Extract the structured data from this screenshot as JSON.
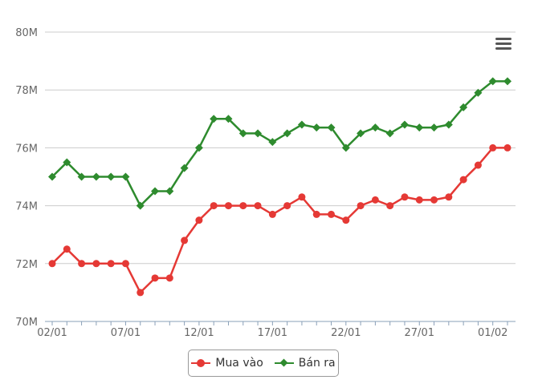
{
  "chart_data": {
    "type": "line",
    "x": [
      "02/01",
      "03/01",
      "04/01",
      "05/01",
      "06/01",
      "07/01",
      "08/01",
      "09/01",
      "10/01",
      "11/01",
      "12/01",
      "13/01",
      "14/01",
      "15/01",
      "16/01",
      "17/01",
      "18/01",
      "19/01",
      "20/01",
      "21/01",
      "22/01",
      "23/01",
      "24/01",
      "25/01",
      "26/01",
      "27/01",
      "28/01",
      "29/01",
      "30/01",
      "31/01",
      "01/02",
      "02/02"
    ],
    "x_tick_labels": [
      "02/01",
      "07/01",
      "12/01",
      "17/01",
      "22/01",
      "27/01",
      "01/02"
    ],
    "y_tick_labels": [
      "70M",
      "72M",
      "74M",
      "76M",
      "78M",
      "80M"
    ],
    "ylim": [
      70,
      80
    ],
    "y_unit": "M",
    "grid": true,
    "legend_position": "bottom-center",
    "series": [
      {
        "name": "Mua vào",
        "color": "#e53935",
        "marker": "circle",
        "values": [
          72.0,
          72.5,
          72.0,
          72.0,
          72.0,
          72.0,
          71.0,
          71.5,
          71.5,
          72.8,
          73.5,
          74.0,
          74.0,
          74.0,
          74.0,
          73.7,
          74.0,
          74.3,
          73.7,
          73.7,
          73.5,
          74.0,
          74.2,
          74.0,
          74.3,
          74.2,
          74.2,
          74.3,
          74.9,
          75.4,
          76.0,
          76.0
        ]
      },
      {
        "name": "Bán ra",
        "color": "#2e8b2e",
        "marker": "diamond",
        "values": [
          75.0,
          75.5,
          75.0,
          75.0,
          75.0,
          75.0,
          74.0,
          74.5,
          74.5,
          75.3,
          76.0,
          77.0,
          77.0,
          76.5,
          76.5,
          76.2,
          76.5,
          76.8,
          76.7,
          76.7,
          76.0,
          76.5,
          76.7,
          76.5,
          76.8,
          76.7,
          76.7,
          76.8,
          77.4,
          77.9,
          78.3,
          78.3
        ]
      }
    ]
  },
  "menu": {
    "icon": "hamburger-menu-icon"
  }
}
